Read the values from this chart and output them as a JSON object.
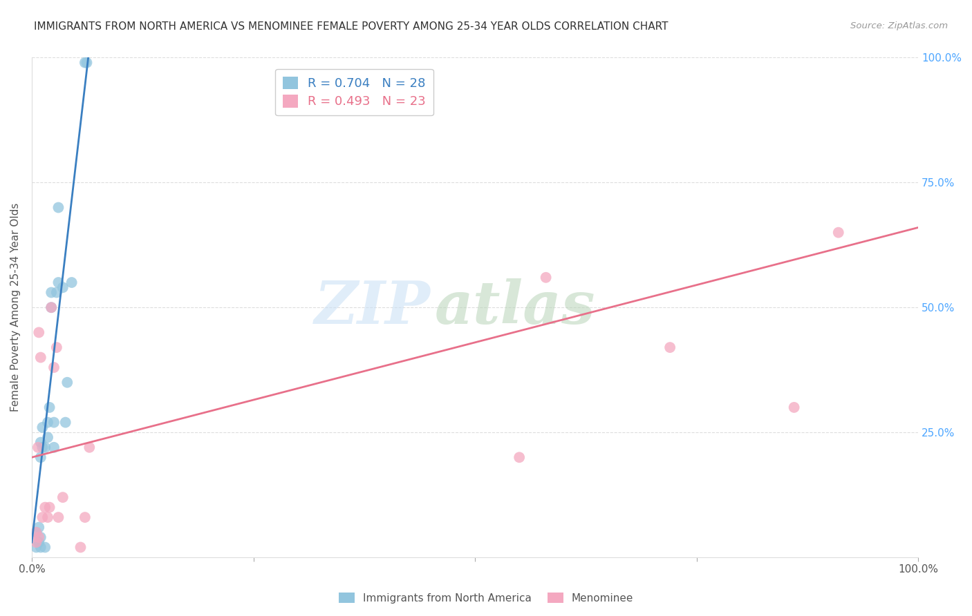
{
  "title": "IMMIGRANTS FROM NORTH AMERICA VS MENOMINEE FEMALE POVERTY AMONG 25-34 YEAR OLDS CORRELATION CHART",
  "source": "Source: ZipAtlas.com",
  "ylabel": "Female Poverty Among 25-34 Year Olds",
  "xlim": [
    0.0,
    1.0
  ],
  "ylim": [
    0.0,
    1.0
  ],
  "blue_label": "Immigrants from North America",
  "pink_label": "Menominee",
  "blue_R": "R = 0.704",
  "blue_N": "N = 28",
  "pink_R": "R = 0.493",
  "pink_N": "N = 23",
  "blue_color": "#92c5de",
  "pink_color": "#f4a8c0",
  "blue_line_color": "#3a7fc1",
  "pink_line_color": "#e8708a",
  "watermark_zip": "ZIP",
  "watermark_atlas": "atlas",
  "watermark_color_zip": "#c8dff0",
  "watermark_color_atlas": "#c0d8c0",
  "blue_points_x": [
    0.005,
    0.005,
    0.008,
    0.008,
    0.01,
    0.01,
    0.01,
    0.01,
    0.012,
    0.012,
    0.015,
    0.015,
    0.018,
    0.018,
    0.02,
    0.022,
    0.022,
    0.025,
    0.025,
    0.028,
    0.03,
    0.03,
    0.035,
    0.038,
    0.04,
    0.045,
    0.06,
    0.062
  ],
  "blue_points_y": [
    0.02,
    0.05,
    0.03,
    0.06,
    0.02,
    0.04,
    0.2,
    0.23,
    0.22,
    0.26,
    0.02,
    0.22,
    0.24,
    0.27,
    0.3,
    0.5,
    0.53,
    0.22,
    0.27,
    0.53,
    0.55,
    0.7,
    0.54,
    0.27,
    0.35,
    0.55,
    0.99,
    0.99
  ],
  "pink_points_x": [
    0.005,
    0.005,
    0.007,
    0.008,
    0.008,
    0.01,
    0.012,
    0.015,
    0.018,
    0.02,
    0.022,
    0.025,
    0.028,
    0.03,
    0.035,
    0.055,
    0.06,
    0.065,
    0.55,
    0.58,
    0.72,
    0.86,
    0.91
  ],
  "pink_points_y": [
    0.03,
    0.05,
    0.22,
    0.04,
    0.45,
    0.4,
    0.08,
    0.1,
    0.08,
    0.1,
    0.5,
    0.38,
    0.42,
    0.08,
    0.12,
    0.02,
    0.08,
    0.22,
    0.2,
    0.56,
    0.42,
    0.3,
    0.65
  ],
  "blue_trendline_x": [
    0.0,
    0.065
  ],
  "blue_trendline_y": [
    0.03,
    1.02
  ],
  "pink_trendline_x": [
    0.0,
    1.0
  ],
  "pink_trendline_y": [
    0.2,
    0.66
  ],
  "xtick_positions": [
    0.0,
    0.25,
    0.5,
    0.75,
    1.0
  ],
  "xtick_labels": [
    "0.0%",
    "",
    "",
    "",
    "100.0%"
  ],
  "ytick_positions": [
    0.25,
    0.5,
    0.75,
    1.0
  ],
  "ytick_labels": [
    "25.0%",
    "50.0%",
    "75.0%",
    "100.0%"
  ],
  "grid_color": "#dddddd",
  "tick_color": "#aaaaaa",
  "title_fontsize": 11,
  "label_fontsize": 11,
  "tick_fontsize": 11,
  "legend_fontsize": 13
}
